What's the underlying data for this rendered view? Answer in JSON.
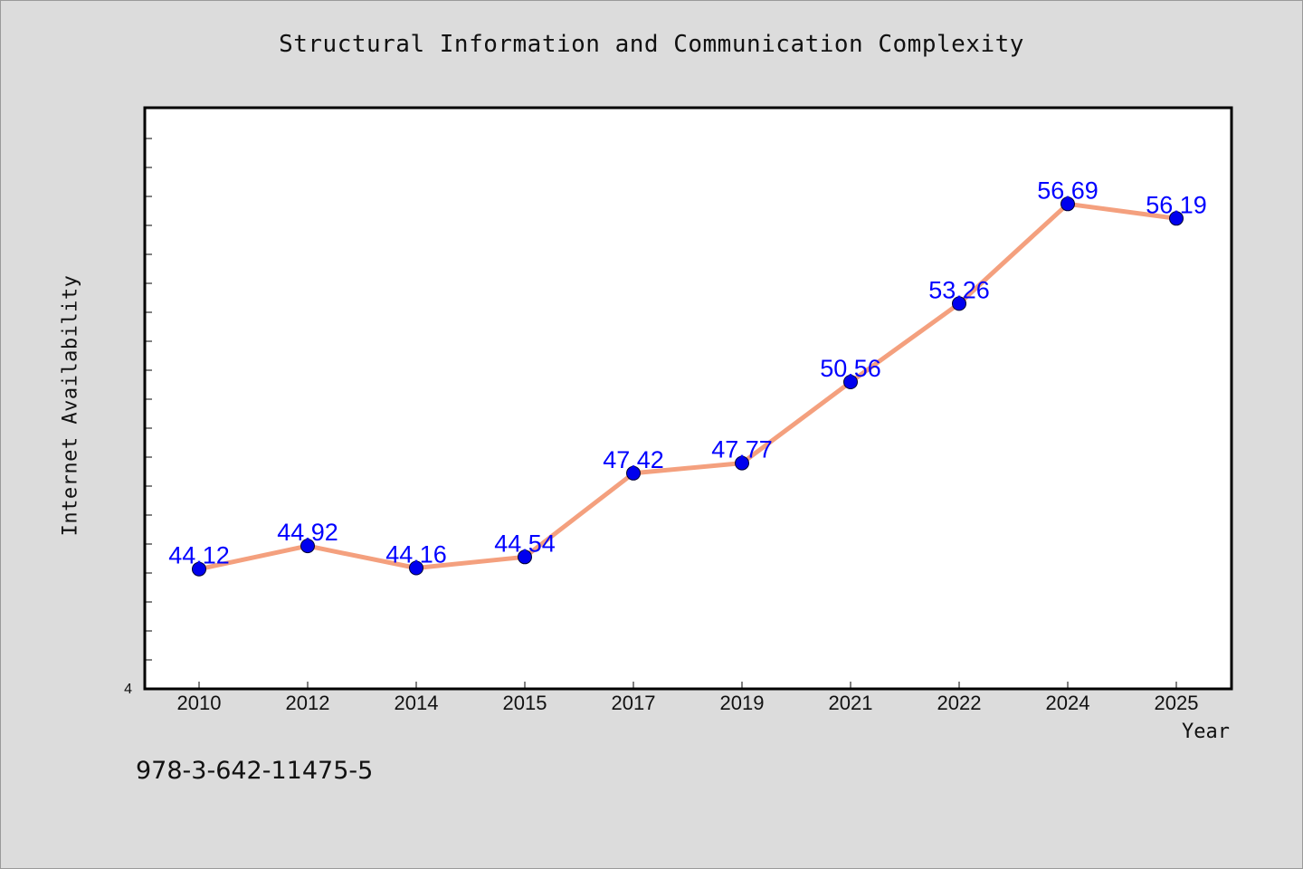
{
  "chart_data": {
    "type": "line",
    "title": "Structural Information and Communication Complexity",
    "xlabel": "Year",
    "ylabel": "Internet Availability",
    "categories": [
      "2010",
      "2012",
      "2014",
      "2015",
      "2017",
      "2019",
      "2021",
      "2022",
      "2024",
      "2025"
    ],
    "series": [
      {
        "values": [
          44.12,
          44.92,
          44.16,
          44.54,
          47.42,
          47.77,
          50.56,
          53.26,
          56.69,
          56.19
        ]
      }
    ],
    "data_labels": [
      "44.12",
      "44.92",
      "44.16",
      "44.54",
      "47.42",
      "47.77",
      "50.56",
      "53.26",
      "56.69",
      "56.19"
    ],
    "ylim": [
      40,
      60
    ],
    "y_tick_label": "4",
    "grid": false,
    "line_color": "#f4a07e",
    "marker_color": "#0000ee",
    "label_color": "#0000ff"
  },
  "footer": {
    "isbn": "978-3-642-11475-5"
  }
}
